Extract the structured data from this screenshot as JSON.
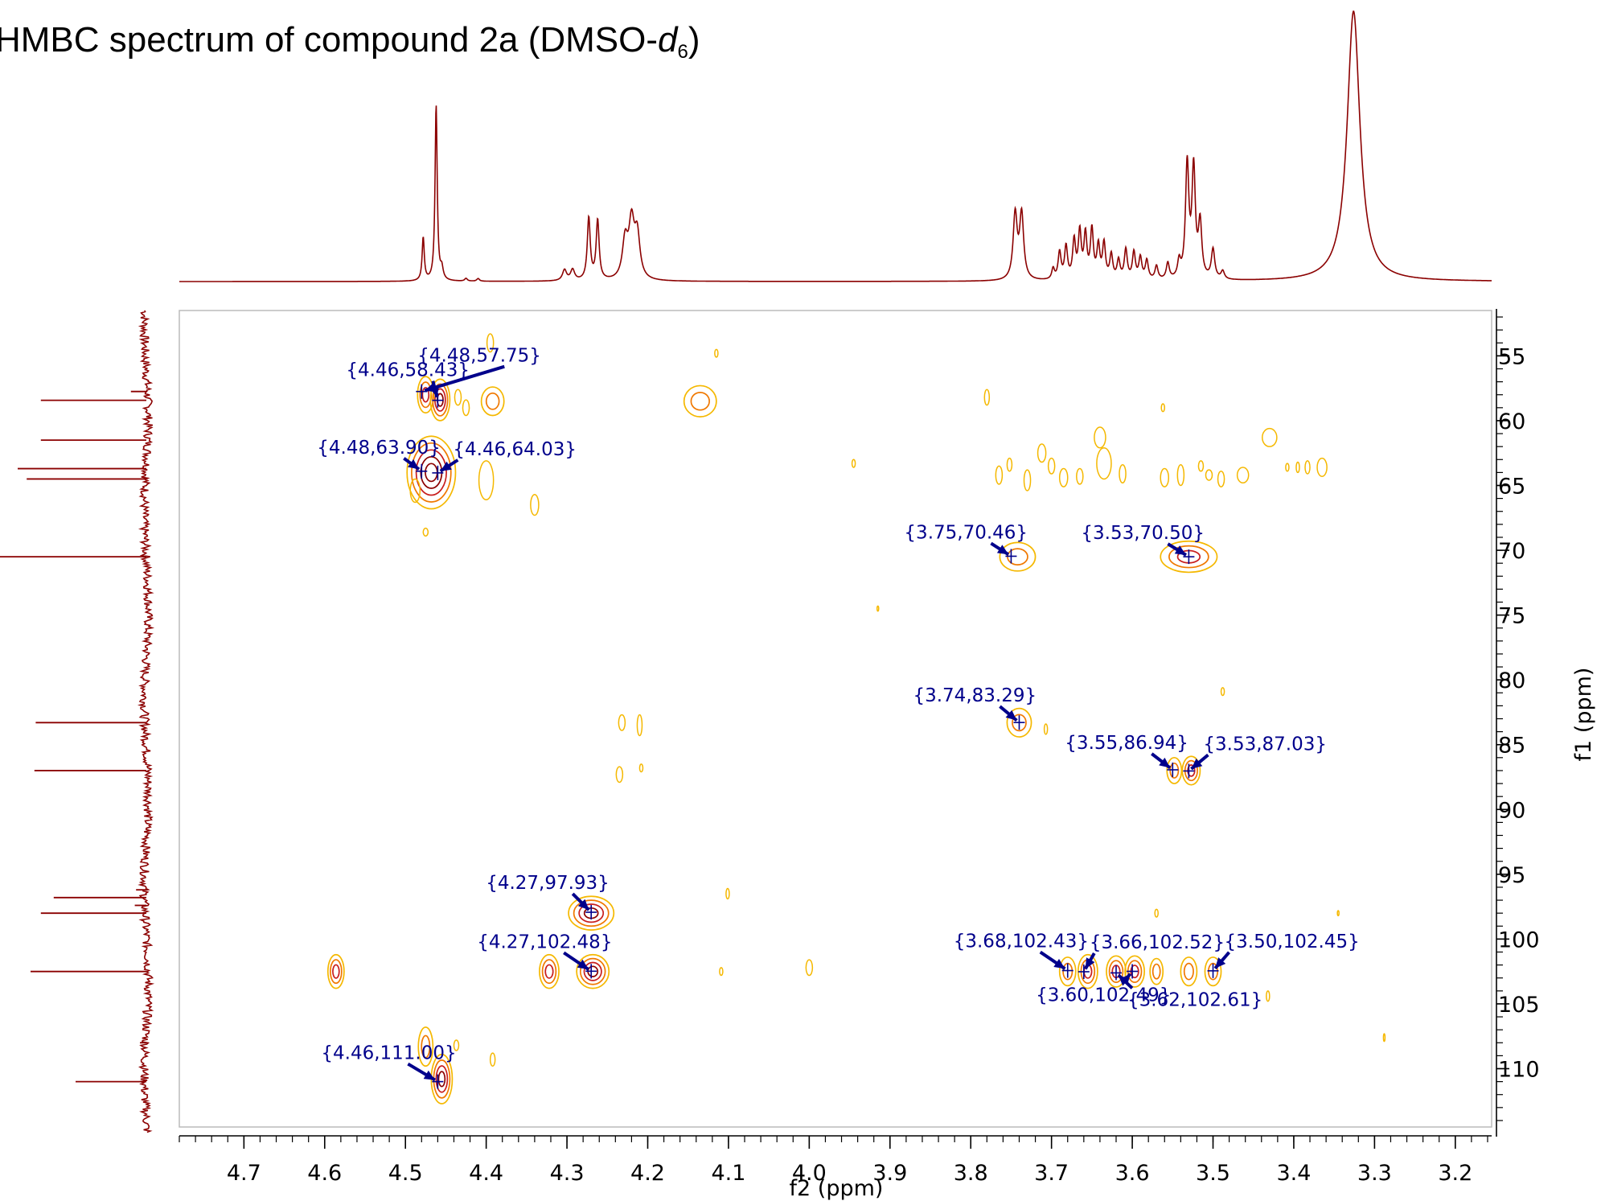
{
  "chart_data": {
    "type": "heatmap",
    "title": "HMBC spectrum of compound 2a (DMSO-",
    "title_italic": "d",
    "title_subscript": "6",
    "title_close": ")",
    "xlabel": "f2 (ppm)",
    "ylabel": "f1 (ppm)",
    "xlim": [
      4.78,
      3.155
    ],
    "ylim": [
      51.5,
      114.5
    ],
    "x_ticks": [
      4.7,
      4.6,
      4.5,
      4.4,
      4.3,
      4.2,
      4.1,
      4.0,
      3.9,
      3.8,
      3.7,
      3.6,
      3.5,
      3.4,
      3.3,
      3.2
    ],
    "x_tick_labels": [
      "4.7",
      "4.6",
      "4.5",
      "4.4",
      "4.3",
      "4.2",
      "4.1",
      "4.0",
      "3.9",
      "3.8",
      "3.7",
      "3.6",
      "3.5",
      "3.4",
      "3.3",
      "3.2"
    ],
    "y_ticks": [
      55,
      60,
      65,
      70,
      75,
      80,
      85,
      90,
      95,
      100,
      105,
      110
    ],
    "y_tick_labels": [
      "55",
      "60",
      "65",
      "70",
      "75",
      "80",
      "85",
      "90",
      "95",
      "100",
      "105",
      "110"
    ],
    "colors": {
      "spectrum": "#8b0000",
      "contour_outer": "#f5b800",
      "contour_mid": "#f07800",
      "contour_inner": "#c81e1e",
      "contour_core": "#8b0000",
      "label": "#00008b",
      "axis": "#000000",
      "frame": "#bbbbbb"
    },
    "peak_labels": [
      {
        "text": "{4.46,58.43}",
        "x": 4.46,
        "y": 58.43
      },
      {
        "text": "{4.48,57.75}",
        "x": 4.48,
        "y": 57.75
      },
      {
        "text": "{4.48,63.90}",
        "x": 4.48,
        "y": 63.9
      },
      {
        "text": "{4.46,64.03}",
        "x": 4.46,
        "y": 64.03
      },
      {
        "text": "{3.75,70.46}",
        "x": 3.75,
        "y": 70.46
      },
      {
        "text": "{3.53,70.50}",
        "x": 3.53,
        "y": 70.5
      },
      {
        "text": "{3.74,83.29}",
        "x": 3.74,
        "y": 83.29
      },
      {
        "text": "{3.55,86.94}",
        "x": 3.55,
        "y": 86.94
      },
      {
        "text": "{3.53,87.03}",
        "x": 3.53,
        "y": 87.03
      },
      {
        "text": "{4.27,97.93}",
        "x": 4.27,
        "y": 97.93
      },
      {
        "text": "{4.27,102.48}",
        "x": 4.27,
        "y": 102.48
      },
      {
        "text": "{3.68,102.43}",
        "x": 3.68,
        "y": 102.43
      },
      {
        "text": "{3.66,102.52}",
        "x": 3.66,
        "y": 102.52
      },
      {
        "text": "{3.50,102.45}",
        "x": 3.5,
        "y": 102.45
      },
      {
        "text": "{3.60,102.49}",
        "x": 3.6,
        "y": 102.49
      },
      {
        "text": "{3.62,102.61}",
        "x": 3.62,
        "y": 102.61
      },
      {
        "text": "{4.46,111.00}",
        "x": 4.46,
        "y": 111.0
      }
    ],
    "cross_peaks": [
      {
        "x": 4.475,
        "y": 58.0,
        "rx": 0.01,
        "ry": 1.4,
        "levels": 3
      },
      {
        "x": 4.457,
        "y": 58.4,
        "rx": 0.012,
        "ry": 1.6,
        "levels": 4
      },
      {
        "x": 4.392,
        "y": 58.5,
        "rx": 0.014,
        "ry": 1.1,
        "levels": 2
      },
      {
        "x": 4.135,
        "y": 58.5,
        "rx": 0.02,
        "ry": 1.2,
        "levels": 2
      },
      {
        "x": 4.468,
        "y": 64.0,
        "rx": 0.03,
        "ry": 2.8,
        "levels": 5
      },
      {
        "x": 3.742,
        "y": 70.5,
        "rx": 0.022,
        "ry": 1.1,
        "levels": 2
      },
      {
        "x": 3.53,
        "y": 70.5,
        "rx": 0.035,
        "ry": 1.2,
        "levels": 3
      },
      {
        "x": 3.74,
        "y": 83.3,
        "rx": 0.015,
        "ry": 1.1,
        "levels": 2
      },
      {
        "x": 3.548,
        "y": 87.0,
        "rx": 0.009,
        "ry": 1.0,
        "levels": 2
      },
      {
        "x": 3.527,
        "y": 87.0,
        "rx": 0.011,
        "ry": 1.1,
        "levels": 3
      },
      {
        "x": 4.27,
        "y": 98.0,
        "rx": 0.028,
        "ry": 1.3,
        "levels": 4
      },
      {
        "x": 4.586,
        "y": 102.5,
        "rx": 0.01,
        "ry": 1.3,
        "levels": 3
      },
      {
        "x": 4.322,
        "y": 102.5,
        "rx": 0.012,
        "ry": 1.3,
        "levels": 3
      },
      {
        "x": 4.268,
        "y": 102.5,
        "rx": 0.02,
        "ry": 1.3,
        "levels": 4
      },
      {
        "x": 3.68,
        "y": 102.5,
        "rx": 0.01,
        "ry": 1.1,
        "levels": 2
      },
      {
        "x": 3.655,
        "y": 102.5,
        "rx": 0.012,
        "ry": 1.3,
        "levels": 3
      },
      {
        "x": 3.62,
        "y": 102.5,
        "rx": 0.012,
        "ry": 1.2,
        "levels": 3
      },
      {
        "x": 3.597,
        "y": 102.5,
        "rx": 0.012,
        "ry": 1.2,
        "levels": 3
      },
      {
        "x": 3.57,
        "y": 102.5,
        "rx": 0.008,
        "ry": 1.0,
        "levels": 2
      },
      {
        "x": 3.53,
        "y": 102.5,
        "rx": 0.01,
        "ry": 1.1,
        "levels": 2
      },
      {
        "x": 3.5,
        "y": 102.5,
        "rx": 0.01,
        "ry": 1.1,
        "levels": 2
      },
      {
        "x": 4.475,
        "y": 108.3,
        "rx": 0.009,
        "ry": 1.5,
        "levels": 2
      },
      {
        "x": 4.455,
        "y": 110.8,
        "rx": 0.013,
        "ry": 1.9,
        "levels": 4
      }
    ],
    "weak_contours": [
      {
        "x": 4.435,
        "y": 58.2,
        "rx": 0.004,
        "ry": 0.6
      },
      {
        "x": 4.425,
        "y": 59.0,
        "rx": 0.004,
        "ry": 0.6
      },
      {
        "x": 4.395,
        "y": 54.0,
        "rx": 0.004,
        "ry": 0.7
      },
      {
        "x": 4.115,
        "y": 54.8,
        "rx": 0.002,
        "ry": 0.3
      },
      {
        "x": 4.488,
        "y": 65.4,
        "rx": 0.006,
        "ry": 0.9
      },
      {
        "x": 4.4,
        "y": 64.6,
        "rx": 0.009,
        "ry": 1.5
      },
      {
        "x": 4.34,
        "y": 66.5,
        "rx": 0.005,
        "ry": 0.8
      },
      {
        "x": 4.475,
        "y": 68.6,
        "rx": 0.003,
        "ry": 0.3
      },
      {
        "x": 3.945,
        "y": 63.3,
        "rx": 0.002,
        "ry": 0.3
      },
      {
        "x": 3.78,
        "y": 58.2,
        "rx": 0.003,
        "ry": 0.6
      },
      {
        "x": 3.765,
        "y": 64.2,
        "rx": 0.004,
        "ry": 0.7
      },
      {
        "x": 3.752,
        "y": 63.4,
        "rx": 0.003,
        "ry": 0.5
      },
      {
        "x": 3.73,
        "y": 64.6,
        "rx": 0.004,
        "ry": 0.8
      },
      {
        "x": 3.712,
        "y": 62.5,
        "rx": 0.005,
        "ry": 0.7
      },
      {
        "x": 3.7,
        "y": 63.5,
        "rx": 0.004,
        "ry": 0.6
      },
      {
        "x": 3.685,
        "y": 64.4,
        "rx": 0.005,
        "ry": 0.7
      },
      {
        "x": 3.665,
        "y": 64.3,
        "rx": 0.004,
        "ry": 0.6
      },
      {
        "x": 3.64,
        "y": 61.3,
        "rx": 0.007,
        "ry": 0.8
      },
      {
        "x": 3.635,
        "y": 63.3,
        "rx": 0.009,
        "ry": 1.2
      },
      {
        "x": 3.612,
        "y": 64.1,
        "rx": 0.004,
        "ry": 0.7
      },
      {
        "x": 3.562,
        "y": 59.0,
        "rx": 0.002,
        "ry": 0.3
      },
      {
        "x": 3.56,
        "y": 64.4,
        "rx": 0.005,
        "ry": 0.7
      },
      {
        "x": 3.54,
        "y": 64.2,
        "rx": 0.004,
        "ry": 0.8
      },
      {
        "x": 3.515,
        "y": 63.5,
        "rx": 0.003,
        "ry": 0.4
      },
      {
        "x": 3.505,
        "y": 64.2,
        "rx": 0.004,
        "ry": 0.4
      },
      {
        "x": 3.49,
        "y": 64.5,
        "rx": 0.004,
        "ry": 0.6
      },
      {
        "x": 3.463,
        "y": 64.2,
        "rx": 0.007,
        "ry": 0.6
      },
      {
        "x": 3.43,
        "y": 61.3,
        "rx": 0.009,
        "ry": 0.7
      },
      {
        "x": 3.408,
        "y": 63.6,
        "rx": 0.002,
        "ry": 0.3
      },
      {
        "x": 3.395,
        "y": 63.6,
        "rx": 0.002,
        "ry": 0.4
      },
      {
        "x": 3.383,
        "y": 63.6,
        "rx": 0.003,
        "ry": 0.5
      },
      {
        "x": 3.365,
        "y": 63.6,
        "rx": 0.006,
        "ry": 0.7
      },
      {
        "x": 3.915,
        "y": 74.5,
        "rx": 0.001,
        "ry": 0.2
      },
      {
        "x": 3.488,
        "y": 80.9,
        "rx": 0.002,
        "ry": 0.3
      },
      {
        "x": 3.707,
        "y": 83.8,
        "rx": 0.002,
        "ry": 0.4
      },
      {
        "x": 4.232,
        "y": 83.3,
        "rx": 0.004,
        "ry": 0.6
      },
      {
        "x": 4.21,
        "y": 83.5,
        "rx": 0.003,
        "ry": 0.8
      },
      {
        "x": 4.235,
        "y": 87.3,
        "rx": 0.004,
        "ry": 0.6
      },
      {
        "x": 4.208,
        "y": 86.8,
        "rx": 0.002,
        "ry": 0.3
      },
      {
        "x": 4.101,
        "y": 96.5,
        "rx": 0.002,
        "ry": 0.4
      },
      {
        "x": 3.57,
        "y": 98.0,
        "rx": 0.002,
        "ry": 0.3
      },
      {
        "x": 3.345,
        "y": 98.0,
        "rx": 0.001,
        "ry": 0.2
      },
      {
        "x": 4.109,
        "y": 102.5,
        "rx": 0.002,
        "ry": 0.3
      },
      {
        "x": 4.0,
        "y": 102.2,
        "rx": 0.004,
        "ry": 0.6
      },
      {
        "x": 3.432,
        "y": 104.4,
        "rx": 0.002,
        "ry": 0.4
      },
      {
        "x": 4.392,
        "y": 109.3,
        "rx": 0.003,
        "ry": 0.5
      },
      {
        "x": 4.437,
        "y": 108.2,
        "rx": 0.003,
        "ry": 0.4
      },
      {
        "x": 3.288,
        "y": 107.6,
        "rx": 0.001,
        "ry": 0.3
      }
    ],
    "proton_spectrum": {
      "baseline": 0.0,
      "peaks": [
        {
          "x": 4.478,
          "h": 0.16,
          "w": 0.0016
        },
        {
          "x": 4.462,
          "h": 0.65,
          "w": 0.0016
        },
        {
          "x": 4.455,
          "h": 0.04,
          "w": 0.002
        },
        {
          "x": 4.425,
          "h": 0.01,
          "w": 0.002
        },
        {
          "x": 4.41,
          "h": 0.01,
          "w": 0.002
        },
        {
          "x": 4.303,
          "h": 0.04,
          "w": 0.003
        },
        {
          "x": 4.293,
          "h": 0.04,
          "w": 0.003
        },
        {
          "x": 4.273,
          "h": 0.23,
          "w": 0.0022
        },
        {
          "x": 4.262,
          "h": 0.22,
          "w": 0.0022
        },
        {
          "x": 4.228,
          "h": 0.14,
          "w": 0.004
        },
        {
          "x": 4.22,
          "h": 0.2,
          "w": 0.004
        },
        {
          "x": 4.213,
          "h": 0.16,
          "w": 0.004
        },
        {
          "x": 3.745,
          "h": 0.24,
          "w": 0.003
        },
        {
          "x": 3.737,
          "h": 0.24,
          "w": 0.003
        },
        {
          "x": 3.698,
          "h": 0.04,
          "w": 0.002
        },
        {
          "x": 3.69,
          "h": 0.1,
          "w": 0.0022
        },
        {
          "x": 3.682,
          "h": 0.12,
          "w": 0.0022
        },
        {
          "x": 3.672,
          "h": 0.14,
          "w": 0.0022
        },
        {
          "x": 3.665,
          "h": 0.17,
          "w": 0.0022
        },
        {
          "x": 3.658,
          "h": 0.16,
          "w": 0.0022
        },
        {
          "x": 3.65,
          "h": 0.18,
          "w": 0.0022
        },
        {
          "x": 3.642,
          "h": 0.12,
          "w": 0.0022
        },
        {
          "x": 3.635,
          "h": 0.13,
          "w": 0.0022
        },
        {
          "x": 3.626,
          "h": 0.09,
          "w": 0.0022
        },
        {
          "x": 3.617,
          "h": 0.07,
          "w": 0.0022
        },
        {
          "x": 3.608,
          "h": 0.11,
          "w": 0.0022
        },
        {
          "x": 3.598,
          "h": 0.1,
          "w": 0.0022
        },
        {
          "x": 3.59,
          "h": 0.08,
          "w": 0.0022
        },
        {
          "x": 3.582,
          "h": 0.07,
          "w": 0.0022
        },
        {
          "x": 3.57,
          "h": 0.05,
          "w": 0.0022
        },
        {
          "x": 3.556,
          "h": 0.06,
          "w": 0.0022
        },
        {
          "x": 3.542,
          "h": 0.06,
          "w": 0.0022
        },
        {
          "x": 3.532,
          "h": 0.42,
          "w": 0.0025
        },
        {
          "x": 3.524,
          "h": 0.4,
          "w": 0.0025
        },
        {
          "x": 3.516,
          "h": 0.2,
          "w": 0.0025
        },
        {
          "x": 3.5,
          "h": 0.11,
          "w": 0.0025
        },
        {
          "x": 3.488,
          "h": 0.03,
          "w": 0.0025
        },
        {
          "x": 3.326,
          "h": 1.0,
          "w": 0.0095
        }
      ]
    },
    "carbon_spectrum": {
      "peaks": [
        {
          "y": 58.43,
          "h": 0.82
        },
        {
          "y": 57.75,
          "h": 0.12
        },
        {
          "y": 61.5,
          "h": 0.82
        },
        {
          "y": 63.7,
          "h": 1.0
        },
        {
          "y": 64.5,
          "h": 0.93
        },
        {
          "y": 70.5,
          "h": 1.15
        },
        {
          "y": 83.3,
          "h": 0.86
        },
        {
          "y": 87.0,
          "h": 0.87
        },
        {
          "y": 96.2,
          "h": 0.08
        },
        {
          "y": 96.8,
          "h": 0.72
        },
        {
          "y": 97.4,
          "h": 0.09
        },
        {
          "y": 98.0,
          "h": 0.82
        },
        {
          "y": 102.5,
          "h": 0.9
        },
        {
          "y": 108.0,
          "h": 0.05
        },
        {
          "y": 111.0,
          "h": 0.55
        }
      ]
    }
  }
}
